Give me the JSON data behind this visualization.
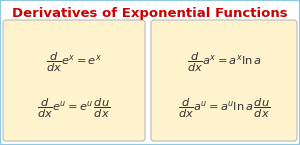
{
  "title": "Derivatives of Exponential Functions",
  "title_color": "#CC0000",
  "title_fontsize": 9.5,
  "bg_color": "#ffffff",
  "box_color": "#FEF3CC",
  "box_edge_color": "#BBBBBB",
  "outer_edge_color": "#90C8E0",
  "formulas_left": [
    "$\\dfrac{d}{dx}e^x = e^x$",
    "$\\dfrac{d}{dx}e^u = e^u\\,\\dfrac{du}{dx}$"
  ],
  "formulas_right": [
    "$\\dfrac{d}{dx}a^x = a^x \\ln a$",
    "$\\dfrac{d}{dx}a^u = a^u \\ln a\\,\\dfrac{du}{dx}$"
  ],
  "formula_color": "#333333",
  "formula_fontsize": 8.2,
  "fig_width": 3.0,
  "fig_height": 1.45,
  "dpi": 100
}
